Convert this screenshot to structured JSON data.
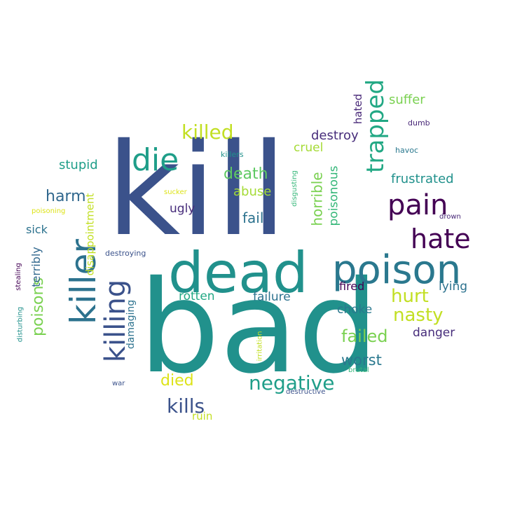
{
  "words": [
    {
      "text": "kill",
      "color": "#3b528b",
      "vertical": false
    },
    {
      "text": "bad",
      "color": "#21918c",
      "vertical": false
    },
    {
      "text": "dead",
      "color": "#21918c",
      "vertical": false
    },
    {
      "text": "poison",
      "color": "#2a788e",
      "vertical": false
    },
    {
      "text": "killer",
      "color": "#2c728e",
      "vertical": true
    },
    {
      "text": "killing",
      "color": "#3b528b",
      "vertical": true
    },
    {
      "text": "die",
      "color": "#1f9e89",
      "vertical": false
    },
    {
      "text": "pain",
      "color": "#440154",
      "vertical": false
    },
    {
      "text": "hate",
      "color": "#440154",
      "vertical": false
    },
    {
      "text": "trapped",
      "color": "#22a884",
      "vertical": true
    },
    {
      "text": "negative",
      "color": "#1f9e89",
      "vertical": false
    },
    {
      "text": "kills",
      "color": "#3b528b",
      "vertical": false
    },
    {
      "text": "killed",
      "color": "#c2df23",
      "vertical": false
    },
    {
      "text": "hurt",
      "color": "#c2df23",
      "vertical": false
    },
    {
      "text": "nasty",
      "color": "#c2df23",
      "vertical": false
    },
    {
      "text": "failed",
      "color": "#7ad151",
      "vertical": false
    },
    {
      "text": "worst",
      "color": "#2a788e",
      "vertical": false
    },
    {
      "text": "died",
      "color": "#dde318",
      "vertical": false
    },
    {
      "text": "harm",
      "color": "#31688e",
      "vertical": false
    },
    {
      "text": "death",
      "color": "#5ec962",
      "vertical": false
    },
    {
      "text": "poisons",
      "color": "#7ad151",
      "vertical": true
    },
    {
      "text": "horrible",
      "color": "#7ad151",
      "vertical": true
    },
    {
      "text": "poisonous",
      "color": "#35b779",
      "vertical": true
    },
    {
      "text": "fail",
      "color": "#2c728e",
      "vertical": false
    },
    {
      "text": "abuse",
      "color": "#a5db36",
      "vertical": false
    },
    {
      "text": "destroy",
      "color": "#472d7b",
      "vertical": false
    },
    {
      "text": "frustrated",
      "color": "#21918c",
      "vertical": false
    },
    {
      "text": "suffer",
      "color": "#7ad151",
      "vertical": false
    },
    {
      "text": "stupid",
      "color": "#1f9e89",
      "vertical": false
    },
    {
      "text": "cruel",
      "color": "#a5db36",
      "vertical": false
    },
    {
      "text": "ugly",
      "color": "#472d7b",
      "vertical": false
    },
    {
      "text": "rotten",
      "color": "#22a884",
      "vertical": false
    },
    {
      "text": "failure",
      "color": "#2c728e",
      "vertical": false
    },
    {
      "text": "danger",
      "color": "#472d7b",
      "vertical": false
    },
    {
      "text": "choke",
      "color": "#2a788e",
      "vertical": false
    },
    {
      "text": "lying",
      "color": "#2c728e",
      "vertical": false
    },
    {
      "text": "fired",
      "color": "#440154",
      "vertical": false
    },
    {
      "text": "sick",
      "color": "#2c728e",
      "vertical": false
    },
    {
      "text": "terribly",
      "color": "#31688e",
      "vertical": true
    },
    {
      "text": "disappointment",
      "color": "#c2df23",
      "vertical": true
    },
    {
      "text": "damaging",
      "color": "#2c728e",
      "vertical": true
    },
    {
      "text": "hated",
      "color": "#482878",
      "vertical": true
    },
    {
      "text": "ruin",
      "color": "#c2df23",
      "vertical": false
    },
    {
      "text": "dumb",
      "color": "#482878",
      "vertical": false
    },
    {
      "text": "havoc",
      "color": "#2a788e",
      "vertical": false
    },
    {
      "text": "drown",
      "color": "#482878",
      "vertical": false
    },
    {
      "text": "killers",
      "color": "#21918c",
      "vertical": false
    },
    {
      "text": "disgusting",
      "color": "#35b779",
      "vertical": true
    },
    {
      "text": "sucker",
      "color": "#dde318",
      "vertical": false
    },
    {
      "text": "poisoning",
      "color": "#dde318",
      "vertical": false
    },
    {
      "text": "destroying",
      "color": "#3b528b",
      "vertical": false
    },
    {
      "text": "stealing",
      "color": "#440154",
      "vertical": true
    },
    {
      "text": "disturbing",
      "color": "#21918c",
      "vertical": true
    },
    {
      "text": "irritation",
      "color": "#c2df23",
      "vertical": true
    },
    {
      "text": "brutal",
      "color": "#35b779",
      "vertical": false
    },
    {
      "text": "war",
      "color": "#3b528b",
      "vertical": false
    },
    {
      "text": "destructive",
      "color": "#3b528b",
      "vertical": false
    }
  ]
}
